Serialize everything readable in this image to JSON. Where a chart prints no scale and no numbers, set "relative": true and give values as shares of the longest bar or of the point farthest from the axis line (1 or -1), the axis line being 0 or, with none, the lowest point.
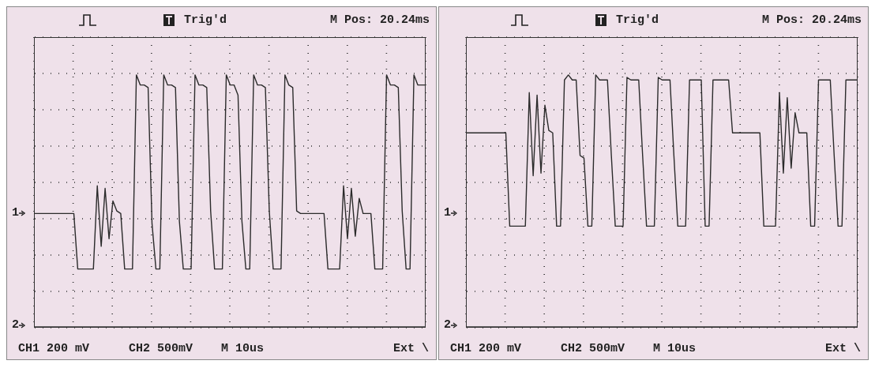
{
  "chart_data": [
    {
      "type": "line",
      "relative": true,
      "grid": true,
      "color": "#2b2b2b",
      "annotations": [
        "Trig'd",
        "M Pos: 20.24ms",
        "CH1 200 mV",
        "CH2 500mV",
        "M 10us",
        "Ext \\",
        "1",
        "2"
      ],
      "categories": [
        null,
        null,
        null,
        null,
        null,
        null,
        null,
        null,
        null,
        null,
        null,
        null,
        null,
        null,
        null,
        null,
        null,
        null,
        null,
        null,
        null,
        null,
        null,
        null,
        null,
        null,
        null,
        null,
        null,
        null,
        null,
        null,
        null,
        null,
        null,
        null,
        null,
        null,
        null,
        null,
        null,
        null,
        null,
        null,
        null,
        null,
        null,
        null,
        null,
        null,
        null,
        null,
        null,
        null,
        null,
        null,
        null,
        null,
        null,
        null,
        null,
        null,
        null,
        null,
        null,
        null,
        null,
        null,
        null,
        null,
        null,
        null,
        null,
        null,
        null,
        null,
        null,
        null,
        null,
        null,
        null,
        null,
        null,
        null,
        null,
        null,
        null,
        null,
        null,
        null,
        null,
        null,
        null,
        null,
        null,
        null,
        null,
        null,
        null,
        null,
        null
      ],
      "values": [
        0.45,
        0.45,
        0.45,
        0.45,
        0.45,
        0.45,
        0.45,
        0.45,
        0.45,
        0.45,
        0.45,
        0.23,
        0.23,
        0.23,
        0.23,
        0.23,
        0.56,
        0.32,
        0.55,
        0.35,
        0.5,
        0.46,
        0.45,
        0.23,
        0.23,
        0.23,
        1,
        0.96,
        0.96,
        0.95,
        0.41,
        0.23,
        0.23,
        1,
        0.96,
        0.96,
        0.95,
        0.42,
        0.23,
        0.23,
        0.23,
        1,
        0.96,
        0.96,
        0.95,
        0.46,
        0.23,
        0.23,
        0.23,
        1,
        0.96,
        0.96,
        0.92,
        0.42,
        0.23,
        0.23,
        1,
        0.96,
        0.96,
        0.95,
        0.46,
        0.23,
        0.23,
        0.23,
        1,
        0.96,
        0.95,
        0.46,
        0.45,
        0.45,
        0.45,
        0.45,
        0.45,
        0.45,
        0.45,
        0.23,
        0.23,
        0.23,
        0.23,
        0.56,
        0.35,
        0.55,
        0.36,
        0.51,
        0.45,
        0.45,
        0.45,
        0.23,
        0.23,
        0.23,
        1,
        0.96,
        0.96,
        0.95,
        0.46,
        0.23,
        0.23,
        1,
        0.96,
        0.96,
        0.96
      ]
    },
    {
      "type": "line",
      "relative": true,
      "grid": true,
      "color": "#2b2b2b",
      "annotations": [
        "Trig'd",
        "M Pos: 20.24ms",
        "CH1 200 mV",
        "CH2 500mV",
        "M 10us",
        "Ext \\",
        "1",
        "2"
      ],
      "categories": [
        null,
        null,
        null,
        null,
        null,
        null,
        null,
        null,
        null,
        null,
        null,
        null,
        null,
        null,
        null,
        null,
        null,
        null,
        null,
        null,
        null,
        null,
        null,
        null,
        null,
        null,
        null,
        null,
        null,
        null,
        null,
        null,
        null,
        null,
        null,
        null,
        null,
        null,
        null,
        null,
        null,
        null,
        null,
        null,
        null,
        null,
        null,
        null,
        null,
        null,
        null,
        null,
        null,
        null,
        null,
        null,
        null,
        null,
        null,
        null,
        null,
        null,
        null,
        null,
        null,
        null,
        null,
        null,
        null,
        null,
        null,
        null,
        null,
        null,
        null,
        null,
        null,
        null,
        null,
        null,
        null,
        null,
        null,
        null,
        null,
        null,
        null,
        null,
        null,
        null,
        null,
        null,
        null,
        null,
        null,
        null,
        null,
        null,
        null,
        null,
        null
      ],
      "values": [
        0.77,
        0.77,
        0.77,
        0.77,
        0.77,
        0.77,
        0.77,
        0.77,
        0.77,
        0.77,
        0.77,
        0.4,
        0.4,
        0.4,
        0.4,
        0.4,
        0.93,
        0.6,
        0.92,
        0.61,
        0.88,
        0.78,
        0.77,
        0.4,
        0.4,
        0.98,
        1,
        0.98,
        0.98,
        0.68,
        0.67,
        0.4,
        0.4,
        1,
        0.98,
        0.98,
        0.98,
        0.68,
        0.4,
        0.4,
        0.4,
        0.99,
        0.98,
        0.98,
        0.98,
        0.68,
        0.4,
        0.4,
        0.4,
        0.99,
        0.98,
        0.98,
        0.98,
        0.68,
        0.4,
        0.4,
        0.4,
        0.98,
        0.98,
        0.98,
        0.98,
        0.4,
        0.4,
        0.98,
        0.98,
        0.98,
        0.98,
        0.98,
        0.77,
        0.77,
        0.77,
        0.77,
        0.77,
        0.77,
        0.77,
        0.77,
        0.4,
        0.4,
        0.4,
        0.4,
        0.93,
        0.61,
        0.91,
        0.63,
        0.85,
        0.77,
        0.77,
        0.77,
        0.4,
        0.4,
        0.98,
        0.98,
        0.98,
        0.98,
        0.68,
        0.4,
        0.4,
        0.98,
        0.98,
        0.98,
        0.98
      ]
    }
  ]
}
